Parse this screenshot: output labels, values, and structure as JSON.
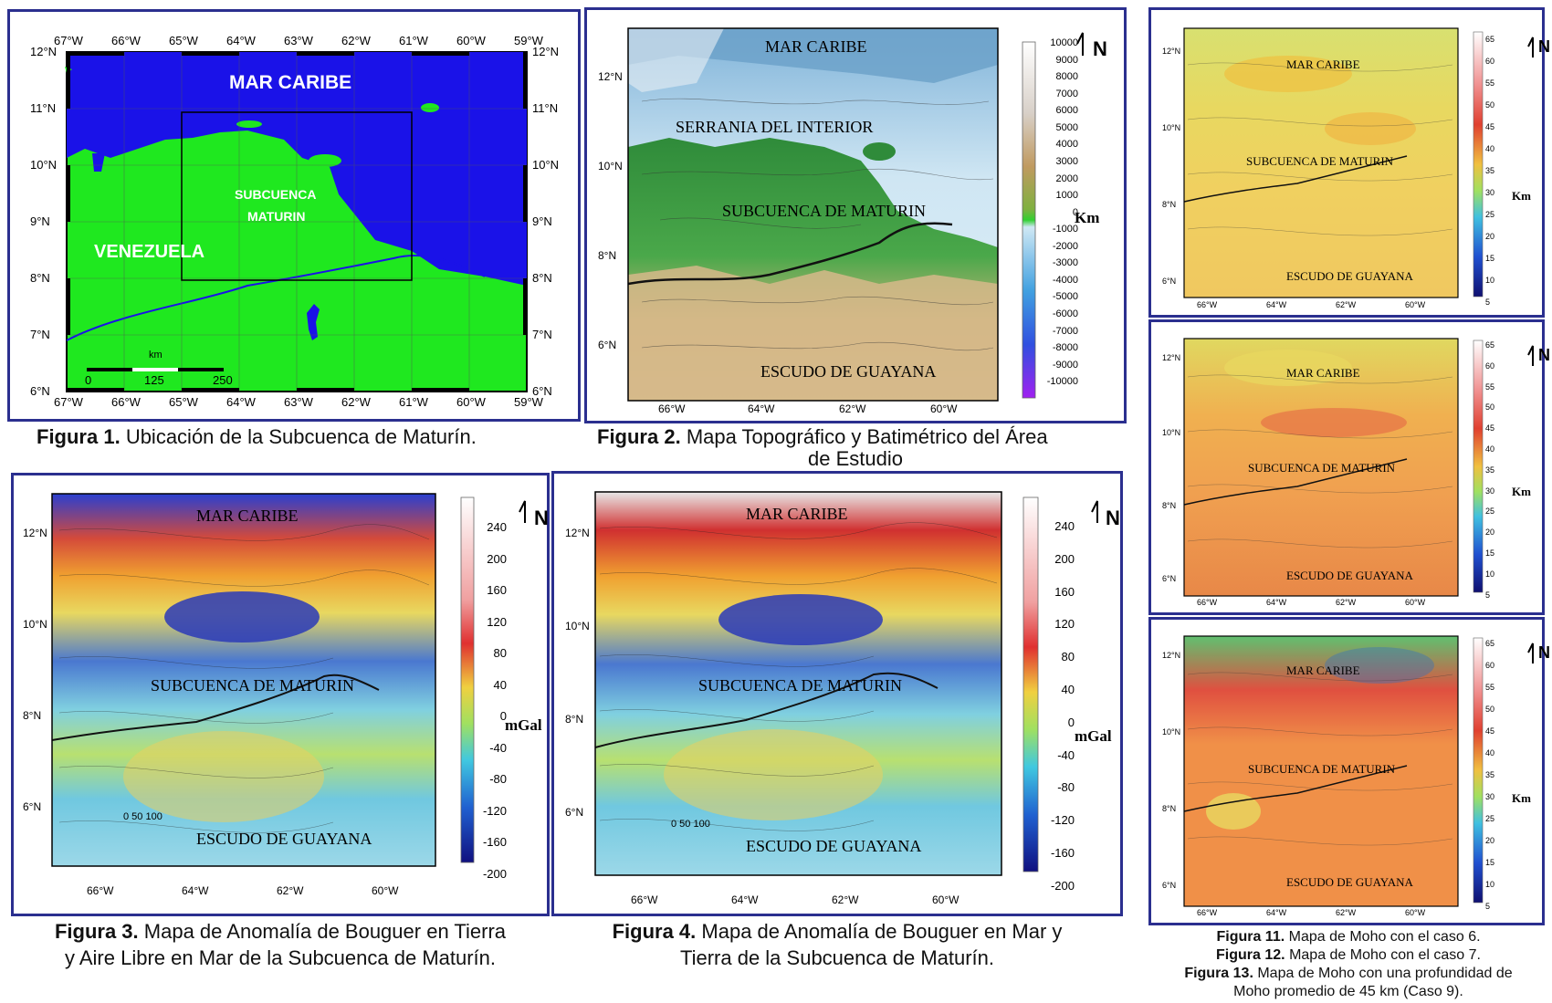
{
  "fig1": {
    "caption_num": "Figura 1.",
    "caption_text": "Ubicación de la Subcuenca de Maturín.",
    "sea_label": "MAR CARIBE",
    "country_label": "VENEZUELA",
    "basin_label_1": "SUBCUENCA",
    "basin_label_2": "MATURIN",
    "lon_ticks": [
      "67°W",
      "66°W",
      "65°W",
      "64°W",
      "63°W",
      "62°W",
      "61°W",
      "60°W",
      "59°W"
    ],
    "lat_ticks": [
      "12°N",
      "11°N",
      "10°N",
      "9°N",
      "8°N",
      "7°N",
      "6°N"
    ],
    "scale_unit": "km",
    "scale_ticks": [
      "0",
      "125",
      "250"
    ],
    "colors": {
      "sea": "#1a12e8",
      "land": "#1fe81f",
      "border": "#2b2f8f"
    }
  },
  "fig2": {
    "caption_num": "Figura 2.",
    "caption_text": "Mapa Topográfico y Batimétrico del Área",
    "caption_text_2": "de Estudio",
    "labels": [
      "MAR CARIBE",
      "SERRANIA DEL INTERIOR",
      "SUBCUENCA DE MATURIN",
      "ESCUDO DE GUAYANA"
    ],
    "lon_ticks": [
      "66°W",
      "64°W",
      "62°W",
      "60°W"
    ],
    "lat_ticks": [
      "12°N",
      "10°N",
      "8°N",
      "6°N"
    ],
    "colorbar_ticks": [
      "10000",
      "9000",
      "8000",
      "7000",
      "6000",
      "5000",
      "4000",
      "3000",
      "2000",
      "1000",
      "0",
      "-1000",
      "-2000",
      "-3000",
      "-4000",
      "-5000",
      "-6000",
      "-7000",
      "-8000",
      "-9000",
      "-10000"
    ],
    "unit": "Km",
    "north": "N"
  },
  "fig3": {
    "caption_num": "Figura 3.",
    "caption_text": "Mapa de Anomalía de Bouguer en Tierra",
    "caption_text_2": "y Aire Libre en Mar de la Subcuenca de Maturín.",
    "labels": [
      "MAR CARIBE",
      "SUBCUENCA DE MATURIN",
      "ESCUDO DE GUAYANA"
    ],
    "lon_ticks": [
      "66°W",
      "64°W",
      "62°W",
      "60°W"
    ],
    "lat_ticks": [
      "12°N",
      "10°N",
      "8°N",
      "6°N"
    ],
    "colorbar_ticks": [
      "240",
      "200",
      "160",
      "120",
      "80",
      "40",
      "0",
      "-40",
      "-80",
      "-120",
      "-160",
      "-200"
    ],
    "unit": "mGal",
    "north": "N",
    "scale": "0 50 100"
  },
  "fig4": {
    "caption_num": "Figura 4.",
    "caption_text": "Mapa de Anomalía de Bouguer en Mar y",
    "caption_text_2": "Tierra de la Subcuenca de Maturín.",
    "labels": [
      "MAR CARIBE",
      "SUBCUENCA DE MATURIN",
      "ESCUDO DE GUAYANA"
    ],
    "lon_ticks": [
      "66°W",
      "64°W",
      "62°W",
      "60°W"
    ],
    "lat_ticks": [
      "12°N",
      "10°N",
      "8°N",
      "6°N"
    ],
    "colorbar_ticks": [
      "240",
      "200",
      "160",
      "120",
      "80",
      "40",
      "0",
      "-40",
      "-80",
      "-120",
      "-160",
      "-200"
    ],
    "unit": "mGal",
    "north": "N",
    "scale": "0 50 100"
  },
  "moho": {
    "labels": [
      "MAR CARIBE",
      "SUBCUENCA DE MATURIN",
      "ESCUDO DE GUAYANA"
    ],
    "lon_ticks": [
      "66°W",
      "64°W",
      "62°W",
      "60°W"
    ],
    "lat_ticks": [
      "12°N",
      "10°N",
      "8°N",
      "6°N"
    ],
    "colorbar_ticks": [
      "65",
      "60",
      "55",
      "50",
      "45",
      "40",
      "35",
      "30",
      "25",
      "20",
      "15",
      "10",
      "5"
    ],
    "unit": "Km",
    "north": "N",
    "captions": [
      {
        "num": "Figura 11.",
        "text": "Mapa de Moho con el caso 6."
      },
      {
        "num": "Figura 12.",
        "text": "Mapa de Moho con el caso 7."
      },
      {
        "num": "Figura 13.",
        "text": "Mapa de Moho con una profundidad de"
      },
      {
        "num": "",
        "text": "Moho promedio de 45 km (Caso 9)."
      }
    ]
  }
}
